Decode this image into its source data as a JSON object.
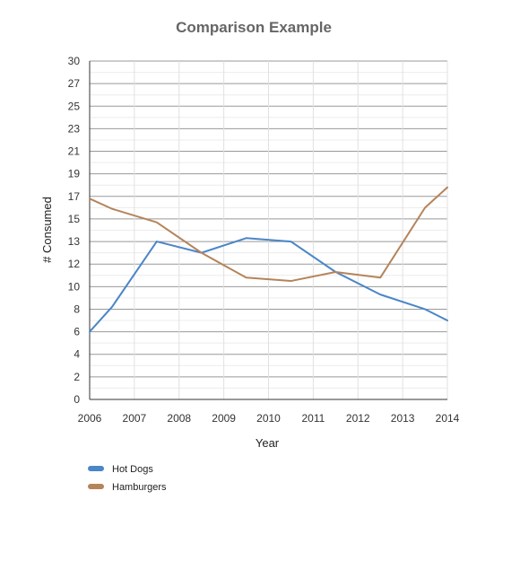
{
  "chart_data": {
    "type": "line",
    "title": "Comparison Example",
    "xlabel": "Year",
    "ylabel": "# Consumed",
    "x": [
      2006,
      2006.5,
      2007.5,
      2008.5,
      2009.5,
      2010.5,
      2011.5,
      2012.5,
      2013.5,
      2014
    ],
    "x_ticks": [
      "2006",
      "2007",
      "2008",
      "2009",
      "2010",
      "2011",
      "2012",
      "2013",
      "2014"
    ],
    "y_ticks": [
      "0",
      "2",
      "4",
      "6",
      "8",
      "10",
      "12",
      "13",
      "15",
      "17",
      "19",
      "21",
      "23",
      "25",
      "27",
      "30"
    ],
    "xlim": [
      2006,
      2014
    ],
    "ylim": [
      0,
      28
    ],
    "grid": true,
    "legend_position": "bottom-left",
    "series": [
      {
        "name": "Hot Dogs",
        "color": "#4a86c8",
        "values": [
          6.0,
          8.2,
          13.0,
          12.5,
          13.3,
          13.0,
          11.3,
          9.3,
          8.0,
          7.0
        ]
      },
      {
        "name": "Hamburgers",
        "color": "#b5845a",
        "values": [
          16.8,
          15.9,
          14.7,
          12.5,
          10.8,
          10.5,
          11.3,
          10.8,
          16.0,
          17.8
        ]
      }
    ]
  }
}
